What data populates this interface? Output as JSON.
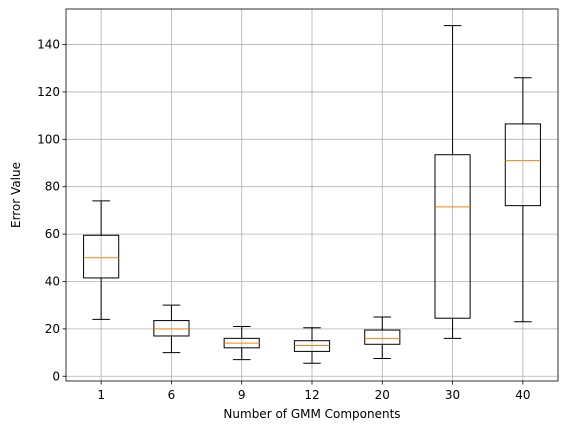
{
  "chart_data": {
    "type": "box",
    "xlabel": "Number of GMM Components",
    "ylabel": "Error Value",
    "categories": [
      "1",
      "6",
      "9",
      "12",
      "20",
      "30",
      "40"
    ],
    "boxes": [
      {
        "category": "1",
        "whisker_low": 24,
        "q1": 41.5,
        "median": 50,
        "q3": 59.5,
        "whisker_high": 74
      },
      {
        "category": "6",
        "whisker_low": 10,
        "q1": 17,
        "median": 20,
        "q3": 23.5,
        "whisker_high": 30
      },
      {
        "category": "9",
        "whisker_low": 7,
        "q1": 12,
        "median": 14,
        "q3": 16,
        "whisker_high": 21
      },
      {
        "category": "12",
        "whisker_low": 5.5,
        "q1": 10.5,
        "median": 13,
        "q3": 15,
        "whisker_high": 20.5
      },
      {
        "category": "20",
        "whisker_low": 7.5,
        "q1": 13.5,
        "median": 16,
        "q3": 19.5,
        "whisker_high": 25
      },
      {
        "category": "30",
        "whisker_low": 16,
        "q1": 24.5,
        "median": 71.5,
        "q3": 93.5,
        "whisker_high": 148
      },
      {
        "category": "40",
        "whisker_low": 23,
        "q1": 72,
        "median": 91,
        "q3": 106.5,
        "whisker_high": 126
      }
    ],
    "ylim": [
      -2,
      155
    ],
    "yticks": [
      0,
      20,
      40,
      60,
      80,
      100,
      120,
      140
    ],
    "grid": true,
    "colors": {
      "box": "#000000",
      "median": "#ff7f0e",
      "grid": "#b0b0b0"
    }
  }
}
